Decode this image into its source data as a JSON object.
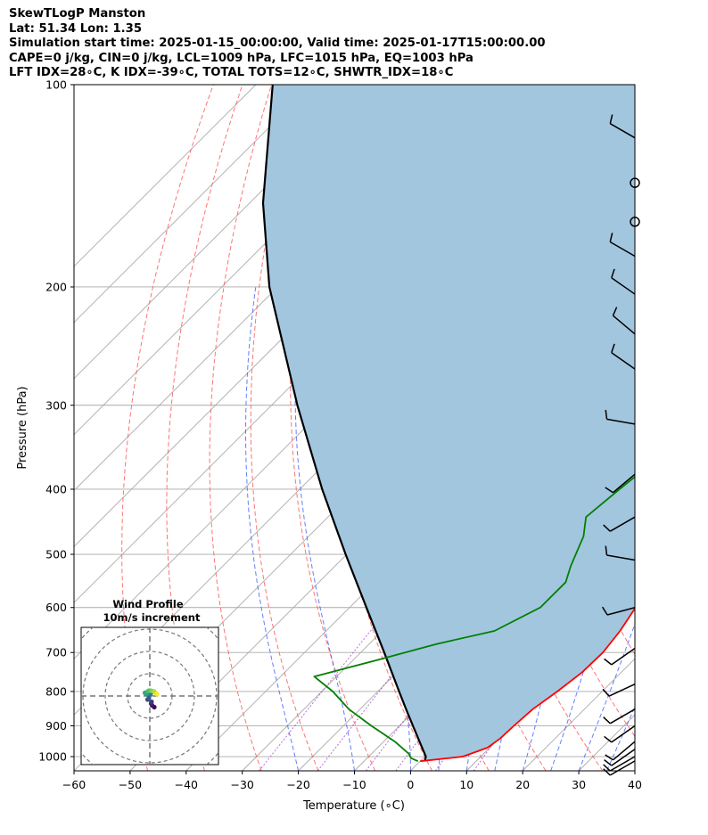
{
  "header": {
    "line1": "SkewTLogP Manston",
    "line2": "Lat: 51.34   Lon: 1.35",
    "line3": "Simulation start time: 2025-01-15_00:00:00, Valid time: 2025-01-17T15:00:00.00",
    "line4": "CAPE=0 j/kg, CIN=0 j/kg, LCL=1009 hPa, LFC=1015 hPa, EQ=1003 hPa",
    "line5": "LFT IDX=28∘C, K IDX=-39∘C, TOTAL TOTS=12∘C, SHWTR_IDX=18∘C"
  },
  "colors": {
    "temperature": "#ff0000",
    "dewpoint": "#008000",
    "parcel": "#000000",
    "cape_fill": "#a3c6df",
    "dry_adiabat": "#ff5a5a",
    "moist_adiabat": "#3b5cff",
    "mixing_ratio": "#9a33cc",
    "isotherm": "#aaaaaa"
  },
  "chart_data": [
    {
      "type": "line",
      "title": "",
      "xlabel": "Temperature (∘C)",
      "ylabel": "Pressure (hPa)",
      "xlim": [
        -60,
        40
      ],
      "ylim": [
        1050,
        100
      ],
      "y_scale": "log",
      "skew": true,
      "grid": true,
      "x_ticks": [
        "−60",
        "−50",
        "−40",
        "−30",
        "−20",
        "−10",
        "0",
        "10",
        "20",
        "30",
        "40"
      ],
      "x_tick_values": [
        -60,
        -50,
        -40,
        -30,
        -20,
        -10,
        0,
        10,
        20,
        30,
        40
      ],
      "y_ticks": [
        "100",
        "200",
        "300",
        "400",
        "500",
        "600",
        "700",
        "800",
        "900",
        "1000"
      ],
      "y_tick_values": [
        100,
        200,
        300,
        400,
        500,
        600,
        700,
        800,
        900,
        1000
      ],
      "series": [
        {
          "key": "temperature",
          "points": [
            [
              1016,
              0
            ],
            [
              1000,
              6.8
            ],
            [
              970,
              9.6
            ],
            [
              940,
              10.2
            ],
            [
              900,
              10.4
            ],
            [
              850,
              10.8
            ],
            [
              800,
              12.0
            ],
            [
              750,
              13.0
            ],
            [
              700,
              13.2
            ],
            [
              650,
              12.4
            ],
            [
              600,
              11.0
            ],
            [
              550,
              9.4
            ],
            [
              500,
              7.8
            ],
            [
              450,
              6.2
            ],
            [
              400,
              4.2
            ],
            [
              350,
              1.8
            ],
            [
              300,
              -0.8
            ],
            [
              260,
              -3.6
            ],
            [
              230,
              -5.4
            ],
            [
              210,
              -6.2
            ],
            [
              200,
              -6.4
            ],
            [
              185,
              -6.6
            ],
            [
              175,
              -6.0
            ],
            [
              165,
              -3.4
            ],
            [
              150,
              -1.2
            ],
            [
              135,
              1.2
            ],
            [
              120,
              2.6
            ],
            [
              110,
              3.8
            ],
            [
              100,
              5.2
            ]
          ]
        },
        {
          "key": "dewpoint",
          "points": [
            [
              1016,
              -0.4
            ],
            [
              1005,
              -2.2
            ],
            [
              990,
              -3.4
            ],
            [
              950,
              -8.0
            ],
            [
              900,
              -15.0
            ],
            [
              850,
              -22.0
            ],
            [
              800,
              -28.0
            ],
            [
              760,
              -34.0
            ],
            [
              720,
              -26.0
            ],
            [
              680,
              -18.0
            ],
            [
              650,
              -10.0
            ],
            [
              600,
              -6.0
            ],
            [
              550,
              -6.0
            ],
            [
              520,
              -8.0
            ],
            [
              470,
              -11.0
            ],
            [
              440,
              -14.0
            ],
            [
              400,
              -13.0
            ],
            [
              370,
              -12.0
            ],
            [
              340,
              -12.0
            ],
            [
              310,
              -12.5
            ],
            [
              280,
              -12.4
            ],
            [
              260,
              -11.4
            ],
            [
              245,
              -10.2
            ],
            [
              230,
              -9.6
            ],
            [
              210,
              -9.0
            ],
            [
              190,
              -7.0
            ],
            [
              170,
              -4.6
            ],
            [
              150,
              -3.4
            ],
            [
              140,
              -3.0
            ],
            [
              125,
              0.6
            ],
            [
              110,
              4.0
            ],
            [
              100,
              6.8
            ]
          ]
        },
        {
          "key": "parcel",
          "points": [
            [
              1016,
              0.8
            ],
            [
              1000,
              0.2
            ],
            [
              950,
              -3.6
            ],
            [
              900,
              -7.6
            ],
            [
              850,
              -11.8
            ],
            [
              800,
              -16.2
            ],
            [
              700,
              -25.8
            ],
            [
              600,
              -37.0
            ],
            [
              500,
              -50.2
            ],
            [
              400,
              -66.0
            ],
            [
              300,
              -85.4
            ],
            [
              200,
              -111.5
            ],
            [
              150,
              -127.6
            ],
            [
              100,
              -147.0
            ]
          ]
        }
      ]
    },
    {
      "type": "scatter",
      "title": "Wind Profile",
      "subtitle": "10m/s increment",
      "rings_ms": [
        10,
        20,
        30,
        40
      ],
      "points_uv_ms": [
        [
          2.0,
          -5.0
        ],
        [
          1.0,
          -4.2
        ],
        [
          0.6,
          -3.4
        ],
        [
          0.8,
          -2.6
        ],
        [
          -1.0,
          -1.6
        ],
        [
          -0.4,
          -0.8
        ],
        [
          0.2,
          0.6
        ],
        [
          0.4,
          1.0
        ],
        [
          -0.8,
          1.2
        ],
        [
          -1.6,
          0.8
        ],
        [
          -2.2,
          1.4
        ],
        [
          -1.0,
          2.0
        ],
        [
          -0.4,
          2.4
        ],
        [
          0.4,
          2.4
        ],
        [
          1.2,
          2.2
        ],
        [
          2.0,
          2.0
        ],
        [
          2.8,
          1.2
        ],
        [
          3.2,
          0.8
        ]
      ]
    }
  ],
  "wind_barbs": [
    {
      "p": 1015,
      "kind": "barb",
      "dir": 240,
      "full": 1,
      "half": 0
    },
    {
      "p": 1000,
      "kind": "barb",
      "dir": 240,
      "full": 1,
      "half": 0
    },
    {
      "p": 975,
      "kind": "barb",
      "dir": 235,
      "full": 1,
      "half": 0
    },
    {
      "p": 950,
      "kind": "barb",
      "dir": 230,
      "full": 1,
      "half": 0
    },
    {
      "p": 900,
      "kind": "barb",
      "dir": 235,
      "full": 1,
      "half": 0
    },
    {
      "p": 850,
      "kind": "barb",
      "dir": 240,
      "full": 1,
      "half": 0
    },
    {
      "p": 780,
      "kind": "barb",
      "dir": 245,
      "full": 1,
      "half": 0
    },
    {
      "p": 690,
      "kind": "barb",
      "dir": 235,
      "full": 1,
      "half": 0
    },
    {
      "p": 600,
      "kind": "barb",
      "dir": 255,
      "full": 1,
      "half": 0
    },
    {
      "p": 510,
      "kind": "barb",
      "dir": 280,
      "full": 1,
      "half": 0
    },
    {
      "p": 440,
      "kind": "barb",
      "dir": 240,
      "full": 1,
      "half": 0
    },
    {
      "p": 380,
      "kind": "barb",
      "dir": 230,
      "full": 1,
      "half": 0
    },
    {
      "p": 320,
      "kind": "barb",
      "dir": 280,
      "full": 1,
      "half": 0
    },
    {
      "p": 265,
      "kind": "barb",
      "dir": 305,
      "full": 1,
      "half": 0
    },
    {
      "p": 235,
      "kind": "barb",
      "dir": 310,
      "full": 1,
      "half": 0
    },
    {
      "p": 205,
      "kind": "barb",
      "dir": 305,
      "full": 1,
      "half": 0
    },
    {
      "p": 180,
      "kind": "barb",
      "dir": 300,
      "full": 1,
      "half": 0
    },
    {
      "p": 160,
      "kind": "calm"
    },
    {
      "p": 140,
      "kind": "calm"
    },
    {
      "p": 120,
      "kind": "barb",
      "dir": 300,
      "full": 1,
      "half": 0
    }
  ]
}
